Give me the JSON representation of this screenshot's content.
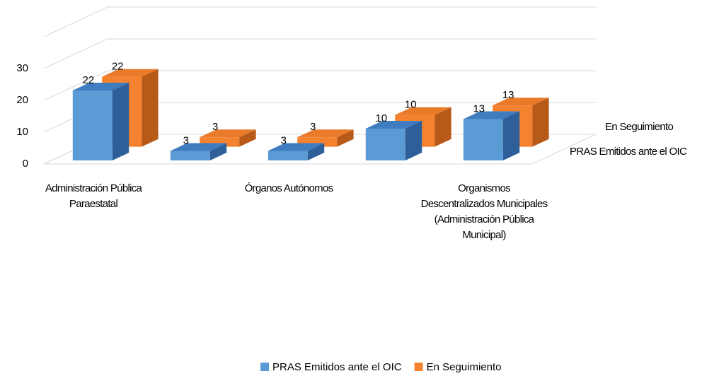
{
  "chart_data": {
    "type": "bar3d",
    "categories": [
      "Administración Pública Paraestatal",
      null,
      "Órganos Autónomos",
      null,
      "Organismos Descentralizados Municipales (Administración Pública Municipal)"
    ],
    "series": [
      {
        "name": "PRAS Emitidos ante el OIC",
        "color": "#5b9bd5",
        "values": [
          22,
          3,
          3,
          10,
          13
        ]
      },
      {
        "name": "En Seguimiento",
        "color": "#f4822f",
        "values": [
          22,
          3,
          3,
          10,
          13
        ]
      }
    ],
    "ylim": [
      0,
      40
    ],
    "yticks": [
      0,
      10,
      20,
      30
    ],
    "grid": true,
    "legend": "bottom"
  }
}
